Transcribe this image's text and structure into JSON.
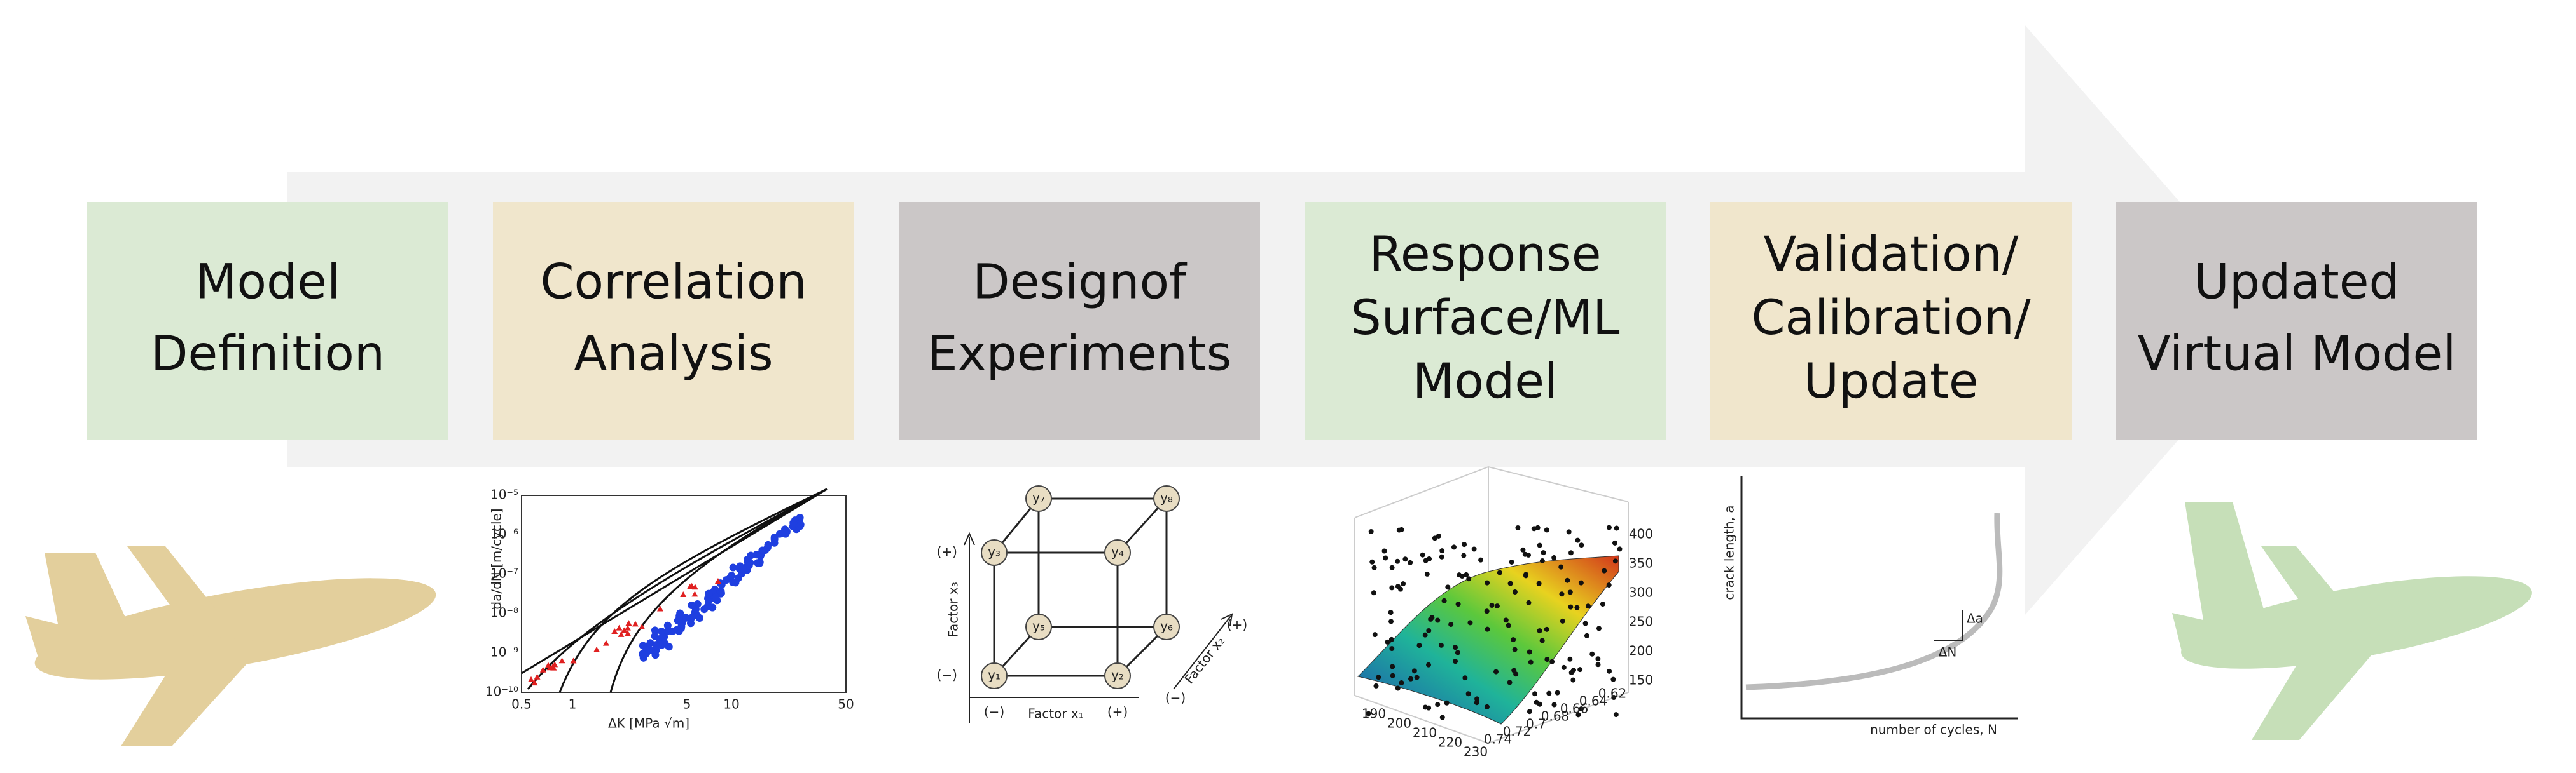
{
  "steps": [
    {
      "lines": [
        "Model",
        "Definition"
      ]
    },
    {
      "lines": [
        "Correlation",
        "Analysis"
      ]
    },
    {
      "lines": [
        "Designof",
        "Experiments"
      ]
    },
    {
      "lines": [
        "Response",
        "Surface/ML",
        "Model"
      ]
    },
    {
      "lines": [
        "Validation/",
        "Calibration/",
        "Update"
      ]
    },
    {
      "lines": [
        "Updated",
        "Virtual Model"
      ]
    }
  ],
  "fatigue_plot": {
    "y_label": "da/dN [m/cycle]",
    "x_label": "ΔK [MPa √m]",
    "y_ticks": [
      "10⁻⁵",
      "10⁻⁶",
      "10⁻⁷",
      "10⁻⁸",
      "10⁻⁹",
      "10⁻¹⁰"
    ],
    "x_ticks": [
      "0.5",
      "1",
      "5",
      "10",
      "50"
    ]
  },
  "doe_cube": {
    "corners": [
      "y₁",
      "y₂",
      "y₃",
      "y₄",
      "y₅",
      "y₆",
      "y₇",
      "y₈"
    ],
    "x1_label": "Factor x₁",
    "x2_label": "Factor x₂",
    "x3_label": "Factor x₃",
    "plus": "(+)",
    "minus": "(−)"
  },
  "surface_plot": {
    "x_ticks": [
      "190",
      "200",
      "210",
      "220",
      "230"
    ],
    "y_ticks": [
      "0.74",
      "0.72",
      "0.7",
      "0.68",
      "0.66",
      "0.64",
      "0.62"
    ],
    "z_ticks": [
      "150",
      "200",
      "250",
      "300",
      "350",
      "400"
    ]
  },
  "crack_plot": {
    "y_label": "crack length, a",
    "x_label": "number of cycles, N",
    "delta_a": "Δa",
    "delta_n": "ΔN"
  }
}
